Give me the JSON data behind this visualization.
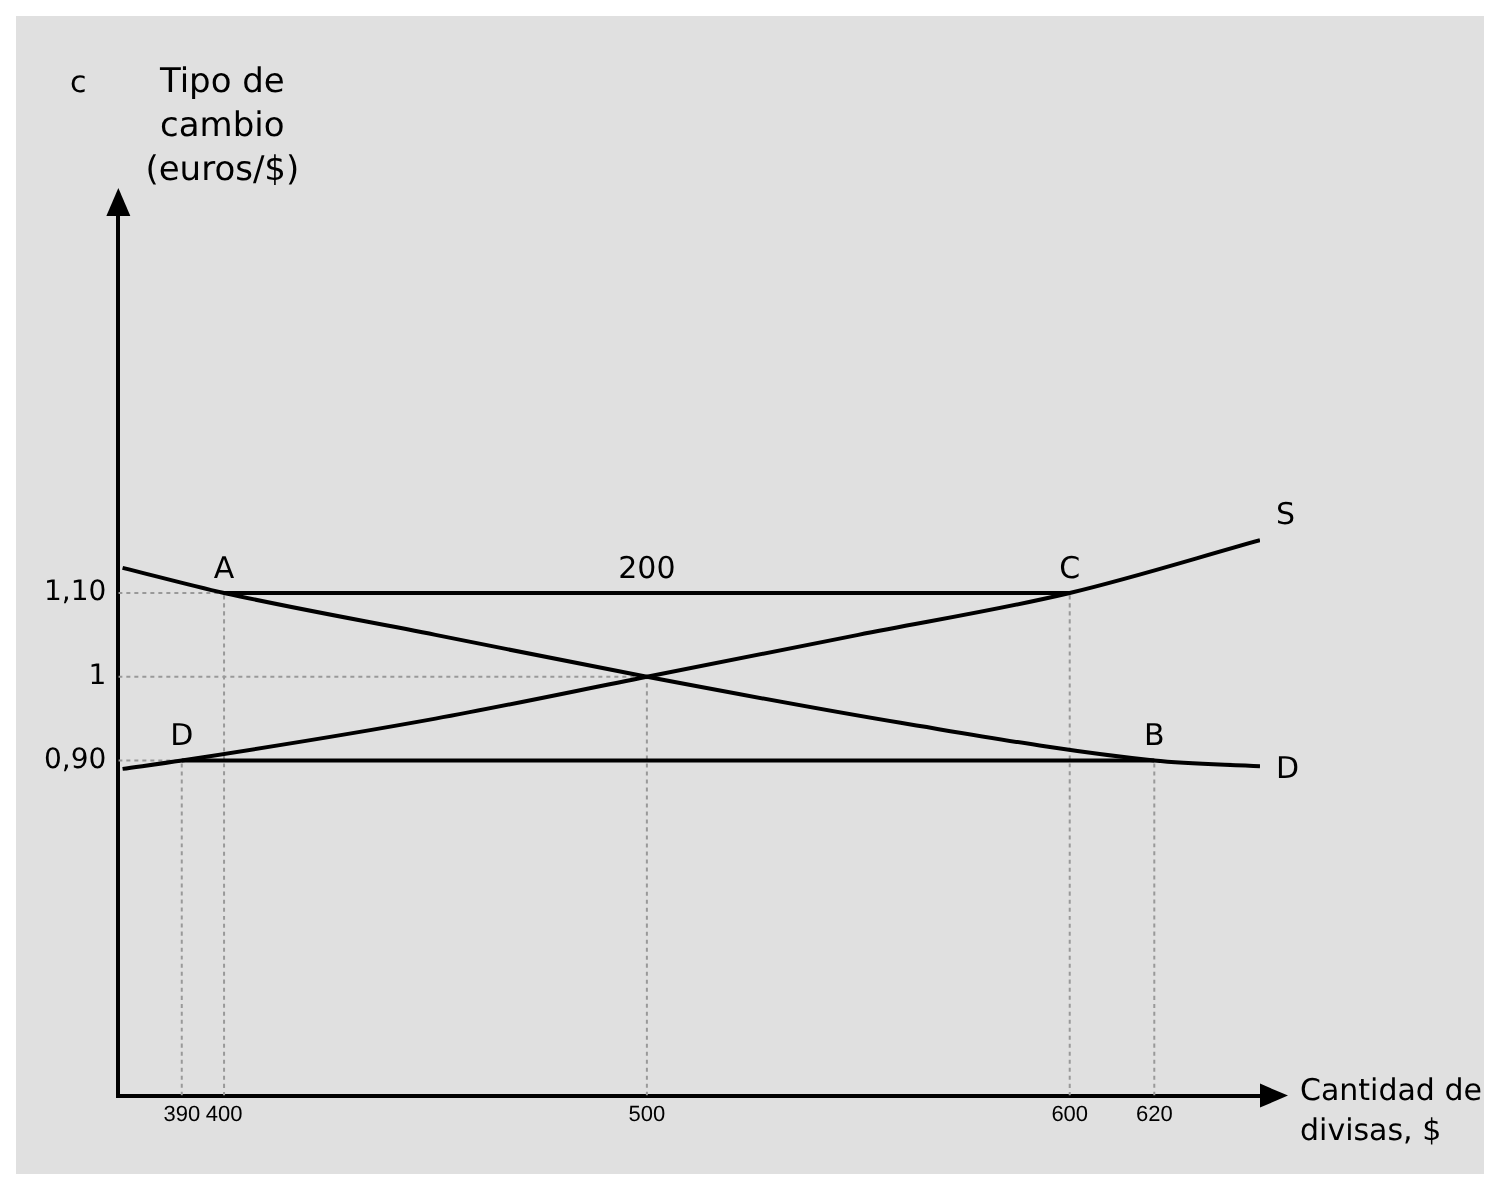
{
  "chart_data": {
    "type": "line",
    "xlabel": "Cantidad de divisas, $",
    "ylabel": "Tipo de cambio (euros/$)",
    "xlim": [
      375,
      645
    ],
    "ylim": [
      0.5,
      1.55
    ],
    "xticks": [
      390,
      400,
      500,
      600,
      620
    ],
    "yticks": [
      {
        "value": 0.9,
        "label": "0,90"
      },
      {
        "value": 1,
        "label": "1"
      },
      {
        "value": 1.1,
        "label": "1,10"
      }
    ],
    "grid": false,
    "legend": false,
    "marker": "none",
    "annotations": [
      "c",
      {
        "text": "A",
        "x": 400,
        "y": 1.1
      },
      {
        "text": "200",
        "x": 500,
        "y": 1.1
      },
      {
        "text": "C",
        "x": 600,
        "y": 1.1
      },
      {
        "text": "D",
        "x": 390,
        "y": 0.9
      },
      {
        "text": "B",
        "x": 620,
        "y": 0.9
      }
    ],
    "series": [
      {
        "name": "D",
        "color": "#000000",
        "line_style": "solid",
        "x": [
          376,
          400,
          450,
          500,
          560,
          620,
          645
        ],
        "values": [
          1.13,
          1.1,
          1.05,
          1.0,
          0.945,
          0.9,
          0.893
        ]
      },
      {
        "name": "S",
        "color": "#000000",
        "line_style": "solid",
        "x": [
          376,
          390,
          450,
          500,
          550,
          600,
          645
        ],
        "values": [
          0.89,
          0.9,
          0.95,
          1.0,
          1.05,
          1.1,
          1.163
        ]
      },
      {
        "color": "#000000",
        "line_style": "solid",
        "x": [
          400,
          600
        ],
        "values": [
          1.1,
          1.1
        ]
      },
      {
        "color": "#000000",
        "line_style": "solid",
        "x": [
          390,
          620
        ],
        "values": [
          0.9,
          0.9
        ]
      },
      {
        "color": "#999999",
        "line_style": "dotted",
        "x": [
          375,
          400
        ],
        "values": [
          1.1,
          1.1
        ]
      },
      {
        "color": "#999999",
        "line_style": "dotted",
        "x": [
          375,
          500
        ],
        "values": [
          1.0,
          1.0
        ]
      },
      {
        "color": "#999999",
        "line_style": "dotted",
        "x": [
          375,
          390
        ],
        "values": [
          0.9,
          0.9
        ]
      },
      {
        "color": "#999999",
        "line_style": "dotted",
        "x": [
          390,
          390
        ],
        "values": [
          0.5,
          0.9
        ]
      },
      {
        "color": "#999999",
        "line_style": "dotted",
        "x": [
          400,
          400
        ],
        "values": [
          0.5,
          1.1
        ]
      },
      {
        "color": "#999999",
        "line_style": "dotted",
        "x": [
          500,
          500
        ],
        "values": [
          0.5,
          1.0
        ]
      },
      {
        "color": "#999999",
        "line_style": "dotted",
        "x": [
          600,
          600
        ],
        "values": [
          0.5,
          1.1
        ]
      },
      {
        "color": "#999999",
        "line_style": "dotted",
        "x": [
          620,
          620
        ],
        "values": [
          0.5,
          0.9
        ]
      }
    ]
  }
}
